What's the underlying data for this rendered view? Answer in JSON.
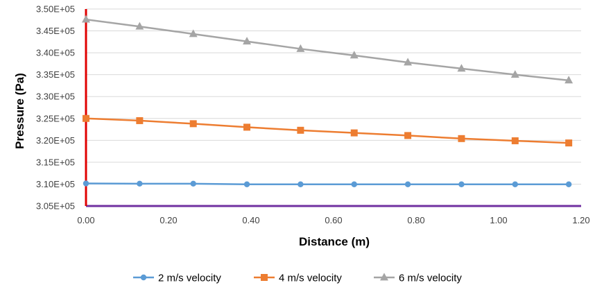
{
  "chart_data": {
    "type": "line",
    "title": "",
    "xlabel": "Distance (m)",
    "ylabel": "Pressure (Pa)",
    "xlim": [
      0.0,
      1.2
    ],
    "ylim": [
      305000,
      350000
    ],
    "x_ticks": [
      "0.00",
      "0.20",
      "0.40",
      "0.60",
      "0.80",
      "1.00",
      "1.20"
    ],
    "x_tick_values": [
      0.0,
      0.2,
      0.4,
      0.6,
      0.8,
      1.0,
      1.2
    ],
    "y_ticks": [
      "3.05E+05",
      "3.10E+05",
      "3.15E+05",
      "3.20E+05",
      "3.25E+05",
      "3.30E+05",
      "3.35E+05",
      "3.40E+05",
      "3.45E+05",
      "3.50E+05"
    ],
    "y_tick_values": [
      305000,
      310000,
      315000,
      320000,
      325000,
      330000,
      335000,
      340000,
      345000,
      350000
    ],
    "grid": "horizontal",
    "legend_position": "bottom",
    "x": [
      0.0,
      0.13,
      0.26,
      0.39,
      0.52,
      0.65,
      0.78,
      0.91,
      1.04,
      1.17
    ],
    "series": [
      {
        "name": "2 m/s velocity",
        "marker": "circle",
        "color": "#5B9BD5",
        "values": [
          310150,
          310100,
          310100,
          309950,
          309950,
          309950,
          309950,
          309950,
          309950,
          309950
        ]
      },
      {
        "name": "4 m/s velocity",
        "marker": "square",
        "color": "#ED7D31",
        "values": [
          325000,
          324500,
          323800,
          323000,
          322300,
          321700,
          321100,
          320400,
          319900,
          319400
        ]
      },
      {
        "name": "6 m/s velocity",
        "marker": "triangle",
        "color": "#A5A5A5",
        "values": [
          347600,
          346000,
          344300,
          342600,
          340900,
          339400,
          337800,
          336400,
          335000,
          333700
        ]
      }
    ],
    "colors": {
      "y_axis_line": "#E00000",
      "x_axis_line": "#7030A0",
      "gridline": "#D9D9D9"
    }
  }
}
